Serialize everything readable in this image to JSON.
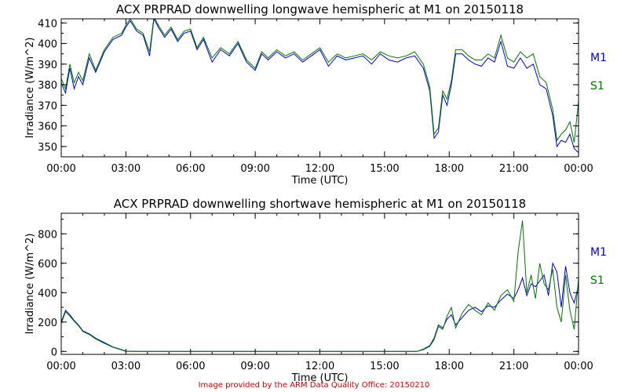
{
  "footer": {
    "credit": "Image provided by the ARM Data Quality Office: 20150210"
  },
  "colors": {
    "M1": "#0000cc",
    "S1": "#007700",
    "axis": "#000000",
    "credit": "#cc0000"
  },
  "chart_data": [
    {
      "type": "line",
      "title": "ACX PRPRAD downwelling longwave hemispheric at M1 on 20150118",
      "xlabel": "Time (UTC)",
      "ylabel": "Irradiance (W/m^2)",
      "xlim": [
        0,
        24
      ],
      "ylim": [
        345,
        412
      ],
      "xticks": [
        "00:00",
        "03:00",
        "06:00",
        "09:00",
        "12:00",
        "15:00",
        "18:00",
        "21:00",
        "00:00"
      ],
      "yticks": [
        350,
        360,
        370,
        380,
        390,
        400,
        410
      ],
      "legend": [
        "M1",
        "S1"
      ],
      "legend_placement": "right",
      "series": [
        {
          "name": "M1",
          "x": [
            0.0,
            0.2,
            0.4,
            0.6,
            0.8,
            1.0,
            1.3,
            1.6,
            2.0,
            2.4,
            2.8,
            3.0,
            3.2,
            3.5,
            3.8,
            4.1,
            4.3,
            4.5,
            4.8,
            5.1,
            5.4,
            5.7,
            6.0,
            6.3,
            6.6,
            7.0,
            7.4,
            7.8,
            8.2,
            8.6,
            9.0,
            9.3,
            9.6,
            10.0,
            10.4,
            10.8,
            11.2,
            11.6,
            12.0,
            12.4,
            12.8,
            13.2,
            13.6,
            14.0,
            14.4,
            14.8,
            15.2,
            15.6,
            16.0,
            16.4,
            16.8,
            17.1,
            17.3,
            17.5,
            17.7,
            17.9,
            18.1,
            18.3,
            18.6,
            18.9,
            19.2,
            19.5,
            19.8,
            20.1,
            20.4,
            20.7,
            21.0,
            21.3,
            21.6,
            21.9,
            22.2,
            22.5,
            22.8,
            23.0,
            23.2,
            23.4,
            23.6,
            23.8,
            24.0
          ],
          "y": [
            381,
            376,
            388,
            378,
            384,
            380,
            393,
            386,
            396,
            402,
            404,
            408,
            411,
            406,
            404,
            394,
            412,
            408,
            403,
            407,
            401,
            405,
            406,
            397,
            402,
            391,
            397,
            394,
            400,
            391,
            387,
            395,
            392,
            396,
            393,
            395,
            391,
            394,
            397,
            389,
            394,
            392,
            393,
            394,
            390,
            395,
            392,
            391,
            393,
            394,
            388,
            377,
            354,
            357,
            375,
            370,
            380,
            395,
            395,
            392,
            390,
            389,
            393,
            391,
            401,
            389,
            388,
            393,
            388,
            390,
            380,
            378,
            365,
            350,
            353,
            352,
            356,
            349,
            347
          ]
        },
        {
          "name": "S1",
          "x": [
            0.0,
            0.2,
            0.4,
            0.6,
            0.8,
            1.0,
            1.3,
            1.6,
            2.0,
            2.4,
            2.8,
            3.0,
            3.2,
            3.5,
            3.8,
            4.1,
            4.3,
            4.5,
            4.8,
            5.1,
            5.4,
            5.7,
            6.0,
            6.3,
            6.6,
            7.0,
            7.4,
            7.8,
            8.2,
            8.6,
            9.0,
            9.3,
            9.6,
            10.0,
            10.4,
            10.8,
            11.2,
            11.6,
            12.0,
            12.4,
            12.8,
            13.2,
            13.6,
            14.0,
            14.4,
            14.8,
            15.2,
            15.6,
            16.0,
            16.4,
            16.8,
            17.1,
            17.3,
            17.5,
            17.7,
            17.9,
            18.1,
            18.3,
            18.6,
            18.9,
            19.2,
            19.5,
            19.8,
            20.1,
            20.4,
            20.7,
            21.0,
            21.3,
            21.6,
            21.9,
            22.2,
            22.5,
            22.8,
            23.0,
            23.2,
            23.4,
            23.6,
            23.8,
            24.0
          ],
          "y": [
            383,
            378,
            390,
            381,
            386,
            382,
            395,
            387,
            397,
            403,
            405,
            409,
            412,
            407,
            405,
            396,
            413,
            409,
            404,
            408,
            402,
            406,
            407,
            398,
            403,
            393,
            398,
            395,
            401,
            392,
            388,
            396,
            393,
            397,
            394,
            396,
            392,
            395,
            398,
            391,
            395,
            393,
            394,
            395,
            392,
            396,
            394,
            393,
            394,
            396,
            390,
            379,
            356,
            359,
            377,
            373,
            382,
            397,
            397,
            394,
            392,
            392,
            395,
            393,
            404,
            393,
            391,
            396,
            393,
            395,
            384,
            381,
            368,
            353,
            356,
            358,
            362,
            352,
            372
          ]
        }
      ]
    },
    {
      "type": "line",
      "title": "ACX PRPRAD downwelling shortwave hemispheric at M1 on 20150118",
      "xlabel": "Time (UTC)",
      "ylabel": "Irradiance (W/m^2)",
      "xlim": [
        0,
        24
      ],
      "ylim": [
        -20,
        940
      ],
      "xticks": [
        "00:00",
        "03:00",
        "06:00",
        "09:00",
        "12:00",
        "15:00",
        "18:00",
        "21:00",
        "00:00"
      ],
      "yticks": [
        0,
        200,
        400,
        600,
        800
      ],
      "legend": [
        "M1",
        "S1"
      ],
      "legend_placement": "right",
      "series": [
        {
          "name": "M1",
          "x": [
            0.0,
            0.2,
            0.4,
            0.6,
            0.8,
            1.0,
            1.3,
            1.6,
            2.0,
            2.4,
            2.8,
            3.0,
            3.5,
            4.0,
            6.0,
            9.0,
            12.0,
            15.0,
            16.5,
            16.8,
            17.1,
            17.3,
            17.5,
            17.7,
            17.9,
            18.1,
            18.3,
            18.6,
            18.9,
            19.2,
            19.5,
            19.8,
            20.1,
            20.4,
            20.7,
            21.0,
            21.2,
            21.4,
            21.6,
            21.8,
            22.0,
            22.2,
            22.4,
            22.6,
            22.8,
            23.0,
            23.2,
            23.4,
            23.6,
            23.8,
            24.0
          ],
          "y": [
            200,
            280,
            250,
            210,
            180,
            140,
            120,
            90,
            60,
            30,
            12,
            2,
            0,
            0,
            0,
            0,
            0,
            0,
            0,
            15,
            40,
            90,
            180,
            160,
            220,
            250,
            180,
            230,
            280,
            300,
            270,
            310,
            300,
            350,
            390,
            360,
            420,
            500,
            380,
            460,
            440,
            480,
            520,
            380,
            600,
            540,
            300,
            580,
            400,
            330,
            450
          ]
        },
        {
          "name": "S1",
          "x": [
            0.0,
            0.2,
            0.4,
            0.6,
            0.8,
            1.0,
            1.3,
            1.6,
            2.0,
            2.4,
            2.8,
            3.0,
            3.5,
            4.0,
            6.0,
            9.0,
            12.0,
            15.0,
            16.5,
            16.8,
            17.1,
            17.3,
            17.5,
            17.7,
            17.9,
            18.1,
            18.3,
            18.6,
            18.9,
            19.2,
            19.5,
            19.8,
            20.1,
            20.4,
            20.7,
            21.0,
            21.2,
            21.4,
            21.6,
            21.8,
            22.0,
            22.2,
            22.4,
            22.6,
            22.8,
            23.0,
            23.2,
            23.4,
            23.6,
            23.8,
            24.0
          ],
          "y": [
            190,
            270,
            240,
            205,
            175,
            135,
            115,
            85,
            55,
            28,
            10,
            0,
            0,
            0,
            0,
            0,
            0,
            0,
            0,
            12,
            35,
            80,
            170,
            150,
            240,
            300,
            160,
            260,
            320,
            280,
            250,
            330,
            280,
            380,
            420,
            340,
            680,
            890,
            400,
            520,
            360,
            600,
            460,
            420,
            560,
            300,
            200,
            520,
            280,
            150,
            500
          ]
        }
      ]
    }
  ]
}
